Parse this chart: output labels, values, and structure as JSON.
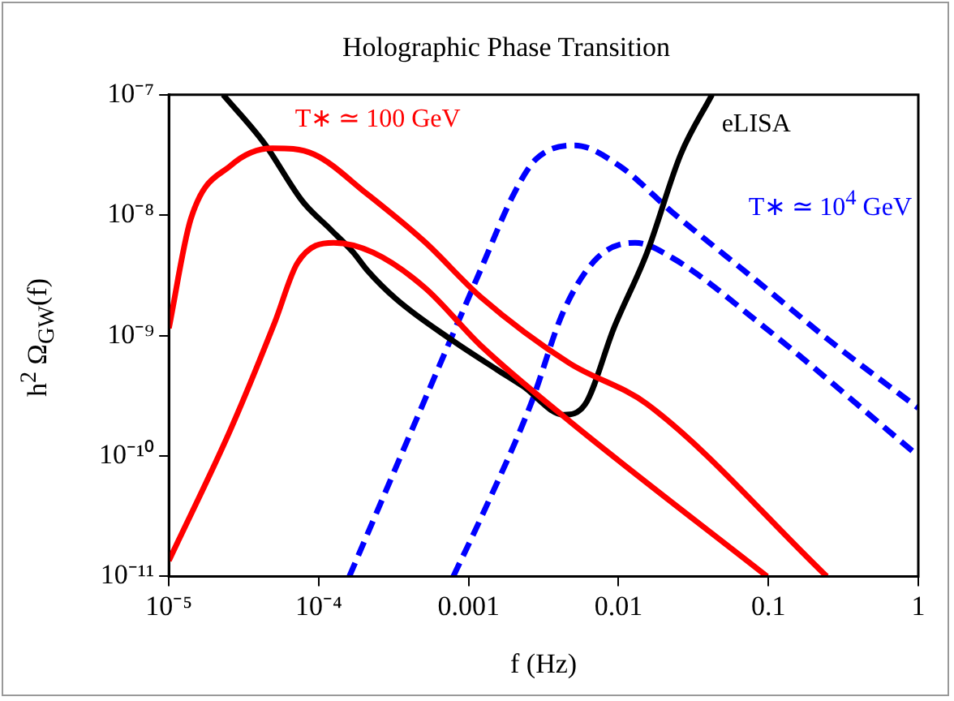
{
  "chart_data": {
    "type": "line",
    "title": "Holographic Phase Transition",
    "xlabel": "f (Hz)",
    "ylabel": "h$^{2}$ Ω$_{GW}$(f)",
    "log": "xy",
    "grid": false,
    "legend": false,
    "marker": "none",
    "xlim": [
      1e-05,
      1
    ],
    "ylim": [
      1e-11,
      1e-07
    ],
    "xticks": [
      {
        "value": 1e-05,
        "label": "10⁻⁵"
      },
      {
        "value": 0.0001,
        "label": "10⁻⁴"
      },
      0.001,
      0.01,
      0.1,
      1
    ],
    "yticks": [
      {
        "value": 1e-11,
        "label": "10⁻¹¹"
      },
      {
        "value": 1e-10,
        "label": "10⁻¹⁰"
      },
      {
        "value": 1e-09,
        "label": "10⁻⁹"
      },
      {
        "value": 1e-08,
        "label": "10⁻⁸"
      },
      {
        "value": 1e-07,
        "label": "10⁻⁷"
      }
    ],
    "series": [
      {
        "name": "T∗ ≃ 100 GeV",
        "color": "#ff0000",
        "line_style": "solid",
        "x": [
          1e-05,
          1.4e-05,
          2.6e-05,
          4.9e-05,
          9.3e-05,
          0.00021,
          0.00051,
          0.0012,
          0.0047,
          0.0155,
          0.245
        ],
        "values": [
          1.15e-09,
          9.3e-09,
          2.6e-08,
          3.6e-08,
          3.2e-08,
          1.5e-08,
          6e-09,
          2.1e-09,
          5.9e-10,
          2.7e-10,
          1e-11
        ]
      },
      {
        "color": "#ff0000",
        "line_style": "solid",
        "x": [
          1e-05,
          2.6e-05,
          5.1e-05,
          7.2e-05,
          0.000126,
          0.00023,
          0.00051,
          0.0012,
          0.0047,
          0.098
        ],
        "values": [
          1.35e-11,
          1.7e-10,
          1.3e-09,
          4e-09,
          5.9e-09,
          4.9e-09,
          2.5e-09,
          8.3e-10,
          1.95e-10,
          1e-11
        ]
      },
      {
        "name": "eLISA",
        "color": "#000000",
        "line_style": "solid",
        "x": [
          2.3e-05,
          4.3e-05,
          7.8e-05,
          0.00012,
          0.00017,
          0.00021,
          0.00033,
          0.00078,
          0.00155,
          0.0023,
          0.0043,
          0.006,
          0.0093,
          0.0155,
          0.026,
          0.042
        ],
        "values": [
          1e-07,
          4e-08,
          1.3e-08,
          7.6e-09,
          4.9e-09,
          3.5e-09,
          2e-09,
          9.1e-10,
          5.2e-10,
          3.8e-10,
          2.2e-10,
          2.7e-10,
          1.15e-09,
          4.9e-09,
          3.2e-08,
          1e-07
        ]
      },
      {
        "name": "T∗ ≃ 10$^{4}$ GeV",
        "color": "#0000ff",
        "line_style": "dashed",
        "x": [
          0.00016,
          0.0012,
          0.002,
          0.0028,
          0.0051,
          0.01,
          0.023,
          0.085,
          0.28,
          1
        ],
        "values": [
          1e-11,
          3.5e-09,
          1.5e-08,
          2.9e-08,
          3.8e-08,
          2.6e-08,
          1.05e-08,
          2.8e-09,
          8.3e-10,
          2.5e-10
        ]
      },
      {
        "color": "#0000ff",
        "line_style": "dashed",
        "x": [
          0.00079,
          0.0012,
          0.0026,
          0.0043,
          0.0072,
          0.0129,
          0.023,
          0.085,
          1
        ],
        "values": [
          1e-11,
          3e-11,
          2.7e-10,
          1.6e-09,
          4.4e-09,
          5.9e-09,
          4.4e-09,
          1.3e-09,
          1e-10
        ]
      }
    ]
  }
}
